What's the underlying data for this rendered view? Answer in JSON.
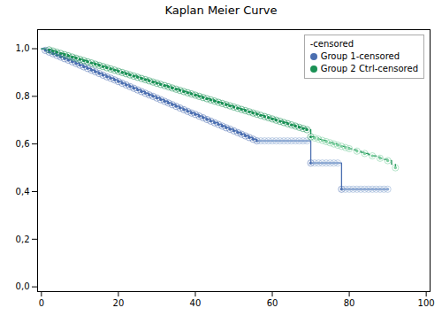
{
  "chart_data": {
    "type": "line",
    "title": "Kaplan Meier Curve",
    "xlim": [
      -1,
      101
    ],
    "ylim": [
      -0.02,
      1.08
    ],
    "xticks": [
      0,
      20,
      40,
      60,
      80,
      100
    ],
    "yticks": [
      {
        "value": 0.0,
        "label": "0,0"
      },
      {
        "value": 0.2,
        "label": "0,2"
      },
      {
        "value": 0.4,
        "label": "0,4"
      },
      {
        "value": 0.6,
        "label": "0,6"
      },
      {
        "value": 0.8,
        "label": "0,8"
      },
      {
        "value": 1.0,
        "label": "1,0"
      }
    ],
    "grid": false,
    "legend": "upper right",
    "legend_title": "-censored",
    "series": [
      {
        "name": "Group 1-censored",
        "type": "step",
        "color": "#4a6eb0",
        "line_style": "solid",
        "x": [
          0,
          1,
          2,
          3,
          4,
          5,
          6,
          7,
          8,
          9,
          10,
          11,
          12,
          13,
          14,
          15,
          16,
          17,
          18,
          19,
          20,
          21,
          22,
          23,
          24,
          25,
          26,
          27,
          28,
          29,
          30,
          31,
          32,
          33,
          34,
          35,
          36,
          37,
          38,
          39,
          40,
          41,
          42,
          43,
          44,
          45,
          46,
          47,
          48,
          49,
          50,
          51,
          52,
          53,
          54,
          55,
          56,
          57,
          58,
          59,
          60,
          61,
          62,
          63,
          64,
          65,
          66,
          67,
          68,
          69,
          70,
          71,
          72,
          73,
          74,
          75,
          76,
          77,
          78,
          79,
          80,
          81,
          82,
          83,
          84,
          85,
          86,
          87,
          88,
          89,
          90
        ],
        "values": [
          1.0,
          0.993,
          0.986,
          0.979,
          0.972,
          0.965,
          0.958,
          0.952,
          0.945,
          0.938,
          0.931,
          0.924,
          0.917,
          0.91,
          0.903,
          0.896,
          0.889,
          0.882,
          0.876,
          0.869,
          0.862,
          0.855,
          0.848,
          0.841,
          0.834,
          0.827,
          0.82,
          0.813,
          0.806,
          0.8,
          0.793,
          0.786,
          0.779,
          0.772,
          0.765,
          0.758,
          0.751,
          0.744,
          0.737,
          0.73,
          0.724,
          0.717,
          0.71,
          0.703,
          0.696,
          0.689,
          0.682,
          0.675,
          0.668,
          0.662,
          0.655,
          0.648,
          0.641,
          0.634,
          0.627,
          0.62,
          0.613,
          0.613,
          0.613,
          0.613,
          0.613,
          0.613,
          0.613,
          0.613,
          0.613,
          0.613,
          0.613,
          0.613,
          0.613,
          0.613,
          0.52,
          0.52,
          0.52,
          0.52,
          0.52,
          0.52,
          0.52,
          0.52,
          0.41,
          0.41,
          0.41,
          0.41,
          0.41,
          0.41,
          0.41,
          0.41,
          0.41,
          0.41,
          0.41,
          0.41,
          0.41
        ]
      },
      {
        "name": "Group 2 Ctrl-censored",
        "type": "step",
        "color": "#1a9155",
        "line_style": "dashed",
        "x": [
          0,
          1,
          2,
          3,
          4,
          5,
          6,
          7,
          8,
          9,
          10,
          11,
          12,
          13,
          14,
          15,
          16,
          17,
          18,
          19,
          20,
          21,
          22,
          23,
          24,
          25,
          26,
          27,
          28,
          29,
          30,
          31,
          32,
          33,
          34,
          35,
          36,
          37,
          38,
          39,
          40,
          41,
          42,
          43,
          44,
          45,
          46,
          47,
          48,
          49,
          50,
          51,
          52,
          53,
          54,
          55,
          56,
          57,
          58,
          59,
          60,
          61,
          62,
          63,
          64,
          65,
          66,
          67,
          68,
          69,
          70,
          71,
          72,
          73,
          74,
          75,
          76,
          77,
          78,
          79,
          80,
          81,
          82,
          83,
          84,
          85,
          86,
          87,
          88,
          89,
          90,
          91,
          92
        ],
        "values": [
          1.0,
          1.0,
          0.995,
          0.99,
          0.985,
          0.98,
          0.975,
          0.97,
          0.965,
          0.96,
          0.955,
          0.95,
          0.945,
          0.94,
          0.935,
          0.93,
          0.925,
          0.92,
          0.915,
          0.91,
          0.905,
          0.9,
          0.895,
          0.89,
          0.885,
          0.88,
          0.875,
          0.87,
          0.865,
          0.86,
          0.855,
          0.85,
          0.845,
          0.84,
          0.835,
          0.83,
          0.825,
          0.82,
          0.815,
          0.81,
          0.805,
          0.8,
          0.795,
          0.79,
          0.785,
          0.78,
          0.775,
          0.77,
          0.765,
          0.76,
          0.755,
          0.75,
          0.745,
          0.74,
          0.735,
          0.73,
          0.725,
          0.72,
          0.715,
          0.71,
          0.705,
          0.7,
          0.695,
          0.69,
          0.685,
          0.68,
          0.675,
          0.67,
          0.665,
          0.66,
          0.63,
          0.625,
          0.62,
          0.615,
          0.61,
          0.605,
          0.6,
          0.595,
          0.59,
          0.585,
          0.58,
          0.575,
          0.57,
          0.565,
          0.56,
          0.555,
          0.55,
          0.545,
          0.54,
          0.535,
          0.53,
          0.515,
          0.5
        ]
      },
      {
        "type": "scatter",
        "color": "#4a6eb0",
        "marker": "circle",
        "x": [
          1,
          2,
          3,
          4,
          5,
          6,
          7,
          8,
          9,
          10,
          11,
          12,
          13,
          14,
          15,
          16,
          17,
          18,
          19,
          20,
          21,
          22,
          23,
          24,
          25,
          26,
          27,
          28,
          29,
          30,
          31,
          32,
          33,
          34,
          35,
          36,
          37,
          38,
          39,
          40,
          41,
          42,
          43,
          44,
          45,
          46,
          47,
          48,
          49,
          50,
          51,
          52,
          53,
          54,
          55,
          56,
          70,
          78
        ],
        "values": [
          0.993,
          0.986,
          0.979,
          0.972,
          0.965,
          0.958,
          0.952,
          0.945,
          0.938,
          0.931,
          0.924,
          0.917,
          0.91,
          0.903,
          0.896,
          0.889,
          0.882,
          0.876,
          0.869,
          0.862,
          0.855,
          0.848,
          0.841,
          0.834,
          0.827,
          0.82,
          0.813,
          0.806,
          0.8,
          0.793,
          0.786,
          0.779,
          0.772,
          0.765,
          0.758,
          0.751,
          0.744,
          0.737,
          0.73,
          0.724,
          0.717,
          0.71,
          0.703,
          0.696,
          0.689,
          0.682,
          0.675,
          0.668,
          0.662,
          0.655,
          0.648,
          0.641,
          0.634,
          0.627,
          0.62,
          0.613,
          0.52,
          0.41
        ]
      },
      {
        "type": "scatter",
        "color": "#8eabd4",
        "marker": "circle",
        "x": [
          57,
          58,
          59,
          60,
          61,
          62,
          63,
          64,
          65,
          66,
          67,
          68,
          69,
          71,
          72,
          73,
          74,
          75,
          76,
          77,
          79,
          80,
          81,
          82,
          83,
          84,
          85,
          86,
          87,
          88,
          89,
          90
        ],
        "values": [
          0.613,
          0.613,
          0.613,
          0.613,
          0.613,
          0.613,
          0.613,
          0.613,
          0.613,
          0.613,
          0.613,
          0.613,
          0.613,
          0.52,
          0.52,
          0.52,
          0.52,
          0.52,
          0.52,
          0.52,
          0.41,
          0.41,
          0.41,
          0.41,
          0.41,
          0.41,
          0.41,
          0.41,
          0.41,
          0.41,
          0.41,
          0.41
        ]
      },
      {
        "type": "scatter",
        "color": "#1a9155",
        "marker": "circle",
        "x": [
          2,
          3,
          4,
          5,
          6,
          7,
          8,
          9,
          10,
          11,
          12,
          13,
          14,
          15,
          16,
          17,
          18,
          19,
          20,
          21,
          22,
          23,
          24,
          25,
          26,
          27,
          28,
          29,
          30,
          31,
          32,
          33,
          34,
          35,
          36,
          37,
          38,
          39,
          40,
          41,
          42,
          43,
          44,
          45,
          46,
          47,
          48,
          49,
          50,
          51,
          52,
          53,
          54,
          55,
          56,
          57,
          58,
          59,
          60,
          61,
          62,
          63,
          64,
          65,
          66,
          67,
          68,
          69,
          70
        ],
        "values": [
          0.995,
          0.99,
          0.985,
          0.98,
          0.975,
          0.97,
          0.965,
          0.96,
          0.955,
          0.95,
          0.945,
          0.94,
          0.935,
          0.93,
          0.925,
          0.92,
          0.915,
          0.91,
          0.905,
          0.9,
          0.895,
          0.89,
          0.885,
          0.88,
          0.875,
          0.87,
          0.865,
          0.86,
          0.855,
          0.85,
          0.845,
          0.84,
          0.835,
          0.83,
          0.825,
          0.82,
          0.815,
          0.81,
          0.805,
          0.8,
          0.795,
          0.79,
          0.785,
          0.78,
          0.775,
          0.77,
          0.765,
          0.76,
          0.755,
          0.75,
          0.745,
          0.74,
          0.735,
          0.73,
          0.725,
          0.72,
          0.715,
          0.71,
          0.705,
          0.7,
          0.695,
          0.69,
          0.685,
          0.68,
          0.675,
          0.67,
          0.665,
          0.66,
          0.63
        ]
      },
      {
        "type": "scatter",
        "color": "#7ecfa0",
        "marker": "circle",
        "x": [
          71,
          72,
          73,
          74,
          75,
          76,
          77,
          78,
          79,
          80,
          82,
          84,
          86,
          88,
          90,
          92
        ],
        "values": [
          0.625,
          0.62,
          0.615,
          0.61,
          0.605,
          0.6,
          0.595,
          0.59,
          0.585,
          0.58,
          0.57,
          0.56,
          0.55,
          0.54,
          0.53,
          0.5
        ]
      }
    ]
  }
}
